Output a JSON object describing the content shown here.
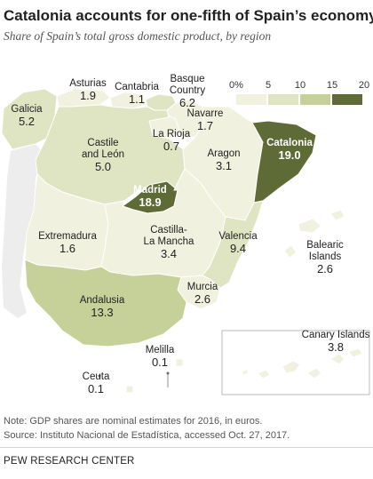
{
  "title": "Catalonia accounts for one-fifth of Spain’s economy",
  "subtitle": "Share of Spain’s total gross domestic product, by region",
  "legend": {
    "ticks": [
      "0%",
      "5",
      "10",
      "15",
      "20"
    ],
    "colors": [
      "#f1f1df",
      "#dfe4c2",
      "#c6d19a",
      "#94a55e",
      "#5f6b36"
    ]
  },
  "colors": {
    "border": "#ffffff",
    "neighbor_fill": "#ededed",
    "sea": "#ffffff",
    "label_dark": "#ffffff",
    "label_light": "#222222"
  },
  "regions": [
    {
      "name": "Galicia",
      "value_text": "5.2",
      "value": 5.2
    },
    {
      "name": "Asturias",
      "value_text": "1.9",
      "value": 1.9
    },
    {
      "name": "Cantabria",
      "value_text": "1.1",
      "value": 1.1
    },
    {
      "name": "Basque Country",
      "name_lines": [
        "Basque",
        "Country"
      ],
      "value_text": "6.2",
      "value": 6.2
    },
    {
      "name": "Navarre",
      "value_text": "1.7",
      "value": 1.7
    },
    {
      "name": "La Rioja",
      "value_text": "0.7",
      "value": 0.7
    },
    {
      "name": "Castile and León",
      "name_lines": [
        "Castile",
        "and León"
      ],
      "value_text": "5.0",
      "value": 5.0
    },
    {
      "name": "Aragon",
      "value_text": "3.1",
      "value": 3.1
    },
    {
      "name": "Catalonia",
      "value_text": "19.0",
      "value": 19.0
    },
    {
      "name": "Madrid",
      "value_text": "18.9",
      "value": 18.9
    },
    {
      "name": "Extremadura",
      "value_text": "1.6",
      "value": 1.6
    },
    {
      "name": "Castilla-La Mancha",
      "name_lines": [
        "Castilla-",
        "La Mancha"
      ],
      "value_text": "3.4",
      "value": 3.4
    },
    {
      "name": "Valencia",
      "value_text": "9.4",
      "value": 9.4
    },
    {
      "name": "Balearic Islands",
      "name_lines": [
        "Balearic",
        "Islands"
      ],
      "value_text": "2.6",
      "value": 2.6
    },
    {
      "name": "Murcia",
      "value_text": "2.6",
      "value": 2.6
    },
    {
      "name": "Andalusia",
      "value_text": "13.3",
      "value": 13.3
    },
    {
      "name": "Melilla",
      "value_text": "0.1",
      "value": 0.1
    },
    {
      "name": "Ceuta",
      "value_text": "0.1",
      "value": 0.1
    },
    {
      "name": "Canary Islands",
      "value_text": "3.8",
      "value": 3.8
    }
  ],
  "note": "Note: GDP shares are nominal estimates for 2016, in euros.",
  "source": "Source: Instituto Nacional de Estadística, accessed Oct. 27, 2017.",
  "org": "PEW RESEARCH CENTER"
}
